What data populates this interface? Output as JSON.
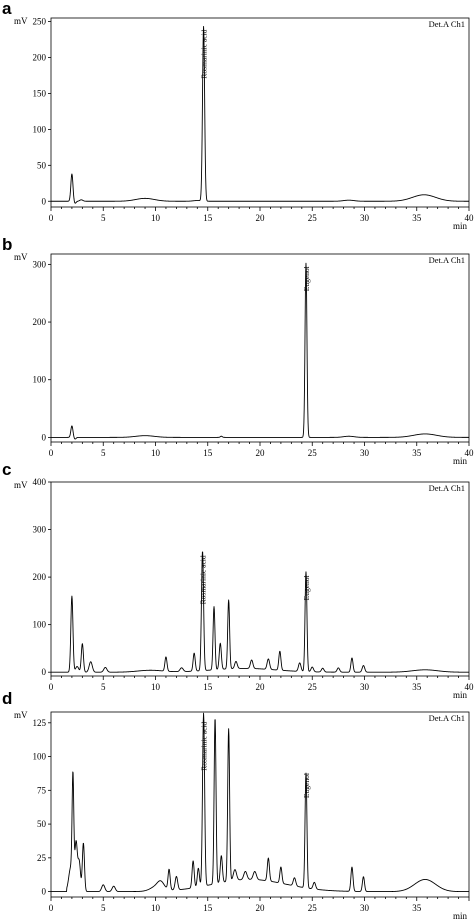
{
  "chart_data": [
    {
      "panel": "a",
      "type": "line",
      "ylabel": "mV",
      "xlabel": "min",
      "detector": "Det.A Ch1",
      "xlim": [
        0,
        40
      ],
      "ylim": [
        -8,
        255
      ],
      "xticks": [
        0,
        5,
        10,
        15,
        20,
        25,
        30,
        35,
        40
      ],
      "yticks": [
        0,
        50,
        100,
        150,
        200,
        250
      ],
      "x_tick_labels": [
        "0",
        "5",
        "10",
        "15",
        "20",
        "25",
        "30",
        "35",
        "40"
      ],
      "y_tick_labels": [
        "0",
        "50",
        "100",
        "150",
        "200",
        "250"
      ],
      "baseline": 0,
      "peaks": [
        {
          "rt": 2.0,
          "height": 38,
          "width": 0.1
        },
        {
          "rt": 2.3,
          "height": -3,
          "width": 0.1
        },
        {
          "rt": 2.9,
          "height": 2,
          "width": 0.15
        },
        {
          "rt": 14.6,
          "height": 243,
          "width": 0.1
        }
      ],
      "humps": [
        {
          "rt": 9.0,
          "height": 4,
          "width": 0.9
        },
        {
          "rt": 14.0,
          "height": 1,
          "width": 0.4
        },
        {
          "rt": 28.5,
          "height": 1.5,
          "width": 0.5
        },
        {
          "rt": 35.7,
          "height": 9,
          "width": 1.1
        }
      ],
      "annotations": [
        {
          "text": "Rosmarinic acid",
          "rt": 14.6,
          "value": 243
        }
      ]
    },
    {
      "panel": "b",
      "type": "line",
      "ylabel": "mV",
      "xlabel": "min",
      "detector": "Det.A Ch1",
      "xlim": [
        0,
        40
      ],
      "ylim": [
        -8,
        318
      ],
      "xticks": [
        0,
        5,
        10,
        15,
        20,
        25,
        30,
        35,
        40
      ],
      "yticks": [
        0,
        100,
        200,
        300
      ],
      "x_tick_labels": [
        "0",
        "5",
        "10",
        "15",
        "20",
        "25",
        "30",
        "35",
        "40"
      ],
      "y_tick_labels": [
        "0",
        "100",
        "200",
        "300"
      ],
      "baseline": 0,
      "peaks": [
        {
          "rt": 2.0,
          "height": 20,
          "width": 0.1
        },
        {
          "rt": 2.3,
          "height": -3,
          "width": 0.1
        },
        {
          "rt": 16.3,
          "height": 2,
          "width": 0.1
        },
        {
          "rt": 24.4,
          "height": 302,
          "width": 0.09
        }
      ],
      "humps": [
        {
          "rt": 9.0,
          "height": 3,
          "width": 0.9
        },
        {
          "rt": 28.5,
          "height": 2,
          "width": 0.5
        },
        {
          "rt": 35.8,
          "height": 6,
          "width": 1.1
        }
      ],
      "annotations": [
        {
          "text": "Eugenol",
          "rt": 24.4,
          "value": 302
        }
      ]
    },
    {
      "panel": "c",
      "type": "line",
      "ylabel": "mV",
      "xlabel": "min",
      "detector": "Det.A Ch1",
      "xlim": [
        0,
        40
      ],
      "ylim": [
        -8,
        400
      ],
      "xticks": [
        0,
        5,
        10,
        15,
        20,
        25,
        30,
        35,
        40
      ],
      "yticks": [
        0,
        100,
        200,
        300,
        400
      ],
      "x_tick_labels": [
        "0",
        "5",
        "10",
        "15",
        "20",
        "25",
        "30",
        "35",
        "40"
      ],
      "y_tick_labels": [
        "0",
        "100",
        "200",
        "300",
        "400"
      ],
      "baseline": 0,
      "peaks": [
        {
          "rt": 2.0,
          "height": 160,
          "width": 0.1
        },
        {
          "rt": 2.5,
          "height": 12,
          "width": 0.15
        },
        {
          "rt": 3.0,
          "height": 60,
          "width": 0.1
        },
        {
          "rt": 3.8,
          "height": 22,
          "width": 0.15
        },
        {
          "rt": 5.2,
          "height": 10,
          "width": 0.15
        },
        {
          "rt": 11.0,
          "height": 30,
          "width": 0.1
        },
        {
          "rt": 12.5,
          "height": 8,
          "width": 0.15
        },
        {
          "rt": 13.7,
          "height": 38,
          "width": 0.1
        },
        {
          "rt": 14.5,
          "height": 252,
          "width": 0.1
        },
        {
          "rt": 15.6,
          "height": 133,
          "width": 0.09
        },
        {
          "rt": 16.2,
          "height": 55,
          "width": 0.1
        },
        {
          "rt": 17.0,
          "height": 145,
          "width": 0.09
        },
        {
          "rt": 17.7,
          "height": 15,
          "width": 0.12
        },
        {
          "rt": 19.2,
          "height": 18,
          "width": 0.12
        },
        {
          "rt": 20.8,
          "height": 22,
          "width": 0.12
        },
        {
          "rt": 21.9,
          "height": 40,
          "width": 0.1
        },
        {
          "rt": 23.8,
          "height": 18,
          "width": 0.12
        },
        {
          "rt": 24.4,
          "height": 210,
          "width": 0.09
        },
        {
          "rt": 25.0,
          "height": 10,
          "width": 0.12
        },
        {
          "rt": 26.0,
          "height": 8,
          "width": 0.12
        },
        {
          "rt": 27.5,
          "height": 9,
          "width": 0.12
        },
        {
          "rt": 28.8,
          "height": 30,
          "width": 0.1
        },
        {
          "rt": 29.9,
          "height": 14,
          "width": 0.12
        }
      ],
      "humps": [
        {
          "rt": 9.5,
          "height": 4,
          "width": 1.2
        },
        {
          "rt": 18.5,
          "height": 8,
          "width": 3.0
        },
        {
          "rt": 35.8,
          "height": 5,
          "width": 1.2
        }
      ],
      "annotations": [
        {
          "text": "Rosmarinic acid",
          "rt": 14.5,
          "value": 252
        },
        {
          "text": "Eugenol",
          "rt": 24.4,
          "value": 210
        }
      ]
    },
    {
      "panel": "d",
      "type": "line",
      "ylabel": "mV",
      "xlabel": "min",
      "detector": "Det.A Ch1",
      "xlim": [
        0,
        40
      ],
      "ylim": [
        -4,
        133
      ],
      "xticks": [
        0,
        5,
        10,
        15,
        20,
        25,
        30,
        35
      ],
      "yticks": [
        0,
        25,
        50,
        75,
        100,
        125
      ],
      "x_tick_labels": [
        "0",
        "5",
        "10",
        "15",
        "20",
        "25",
        "30",
        "35"
      ],
      "y_tick_labels": [
        "0",
        "25",
        "50",
        "75",
        "100",
        "125"
      ],
      "baseline": 0,
      "peaks": [
        {
          "rt": 1.9,
          "height": 18,
          "width": 0.2
        },
        {
          "rt": 2.1,
          "height": 77,
          "width": 0.08
        },
        {
          "rt": 2.4,
          "height": 36,
          "width": 0.12
        },
        {
          "rt": 2.7,
          "height": 22,
          "width": 0.12
        },
        {
          "rt": 3.1,
          "height": 36,
          "width": 0.1
        },
        {
          "rt": 5.0,
          "height": 5,
          "width": 0.15
        },
        {
          "rt": 6.0,
          "height": 4,
          "width": 0.15
        },
        {
          "rt": 10.5,
          "height": 4,
          "width": 0.3
        },
        {
          "rt": 11.3,
          "height": 15,
          "width": 0.1
        },
        {
          "rt": 12.0,
          "height": 10,
          "width": 0.12
        },
        {
          "rt": 13.6,
          "height": 20,
          "width": 0.1
        },
        {
          "rt": 14.1,
          "height": 14,
          "width": 0.1
        },
        {
          "rt": 14.6,
          "height": 128,
          "width": 0.1
        },
        {
          "rt": 15.7,
          "height": 123,
          "width": 0.09
        },
        {
          "rt": 16.3,
          "height": 20,
          "width": 0.1
        },
        {
          "rt": 17.0,
          "height": 113,
          "width": 0.09
        },
        {
          "rt": 17.6,
          "height": 8,
          "width": 0.15
        },
        {
          "rt": 18.6,
          "height": 6,
          "width": 0.15
        },
        {
          "rt": 19.5,
          "height": 6,
          "width": 0.15
        },
        {
          "rt": 20.8,
          "height": 17,
          "width": 0.1
        },
        {
          "rt": 22.0,
          "height": 12,
          "width": 0.1
        },
        {
          "rt": 23.3,
          "height": 6,
          "width": 0.12
        },
        {
          "rt": 24.4,
          "height": 85,
          "width": 0.09
        },
        {
          "rt": 25.2,
          "height": 5,
          "width": 0.12
        },
        {
          "rt": 28.8,
          "height": 18,
          "width": 0.1
        },
        {
          "rt": 29.9,
          "height": 11,
          "width": 0.1
        }
      ],
      "humps": [
        {
          "rt": 10.2,
          "height": 4,
          "width": 0.6
        },
        {
          "rt": 19.0,
          "height": 9,
          "width": 3.5
        },
        {
          "rt": 35.8,
          "height": 9,
          "width": 1.0
        }
      ],
      "annotations": [
        {
          "text": "Rosmarinic acid",
          "rt": 14.6,
          "value": 128
        },
        {
          "text": "Eugenol",
          "rt": 24.4,
          "value": 90
        }
      ]
    }
  ]
}
